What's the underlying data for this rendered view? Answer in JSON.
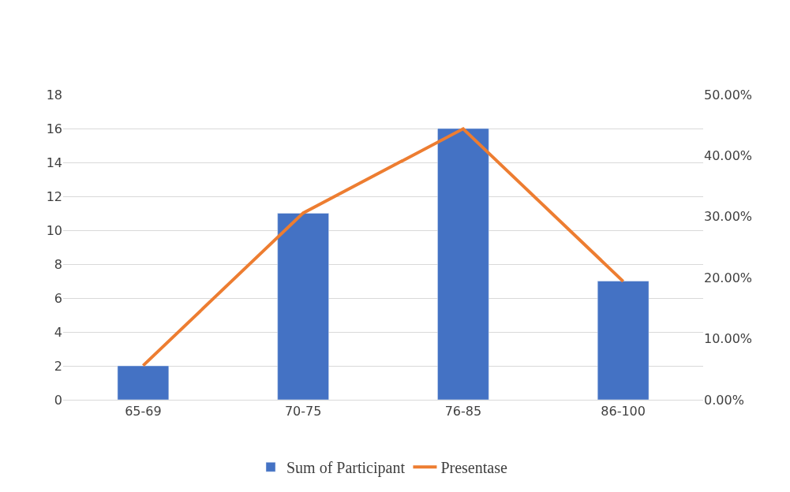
{
  "chart_data": {
    "type": "bar",
    "categories": [
      "65-69",
      "70-75",
      "76-85",
      "86-100"
    ],
    "series": [
      {
        "name": "Sum of Participant",
        "color": "#4472c4",
        "values": [
          2,
          11,
          16,
          7
        ]
      },
      {
        "name": "Presentase",
        "type": "line",
        "axis": "y2",
        "color": "#ed7d31",
        "values": [
          5.6,
          30.6,
          44.4,
          19.4
        ]
      }
    ],
    "ylim": [
      0,
      18
    ],
    "yticks": [
      0,
      2,
      4,
      6,
      8,
      10,
      12,
      14,
      16,
      18
    ],
    "y2lim": [
      0,
      50
    ],
    "y2ticks": [
      {
        "value": 0,
        "label": "0.00%"
      },
      {
        "value": 10,
        "label": "10.00%"
      },
      {
        "value": 20,
        "label": "20.00%"
      },
      {
        "value": 30,
        "label": "30.00%"
      },
      {
        "value": 40,
        "label": "40.00%"
      },
      {
        "value": 50,
        "label": "50.00%"
      }
    ],
    "grid": "y",
    "legend": "bottom",
    "marker": "none",
    "line_style": "solid"
  }
}
